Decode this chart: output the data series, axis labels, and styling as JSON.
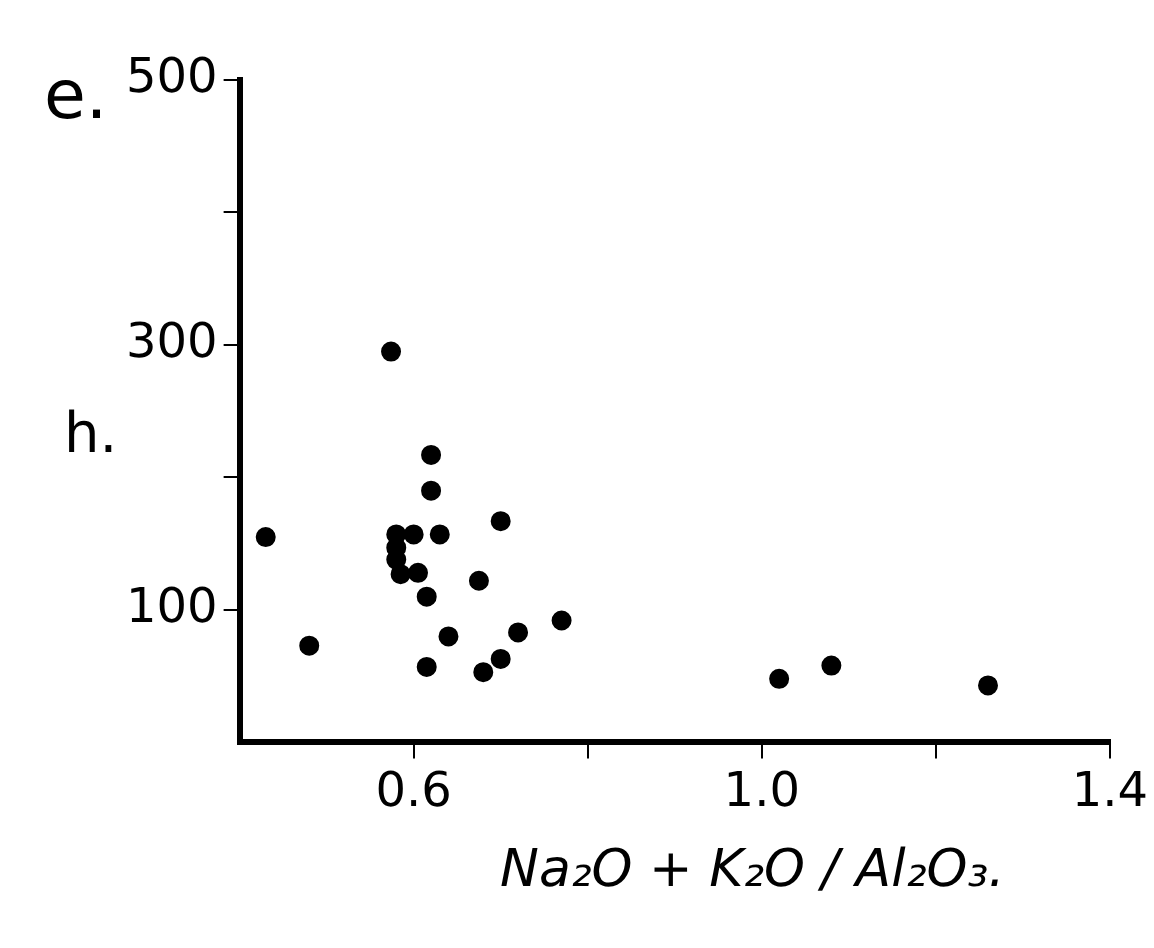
{
  "chart_data": {
    "type": "scatter",
    "title": "e.",
    "xlabel": "Na₂O + K₂O / Al₂O₃.",
    "ylabel": "h.",
    "x": [
      0.574,
      0.43,
      0.48,
      0.62,
      0.62,
      0.7,
      0.6,
      0.63,
      0.58,
      0.58,
      0.58,
      0.585,
      0.605,
      0.675,
      0.615,
      0.64,
      0.72,
      0.77,
      0.615,
      0.7,
      0.68,
      1.02,
      1.08,
      1.26
    ],
    "values": [
      295,
      155,
      73,
      217,
      190,
      167,
      157,
      157,
      157,
      147,
      138,
      127,
      128,
      122,
      110,
      80,
      83,
      92,
      57,
      63,
      53,
      48,
      58,
      43
    ],
    "color": "#000000",
    "marker": "circle",
    "xlim": [
      0.4,
      1.4
    ],
    "xticks": [
      {
        "value": 0.6,
        "label": "0.6"
      },
      {
        "value": 0.8,
        "label": null
      },
      {
        "value": 1.0,
        "label": "1.0"
      },
      {
        "value": 1.2,
        "label": null
      },
      {
        "value": 1.4,
        "label": "1.4"
      }
    ],
    "ylim": [
      0,
      500
    ],
    "yticks": [
      100,
      {
        "value": 200,
        "label": null
      },
      300,
      {
        "value": 400,
        "label": null
      },
      500
    ],
    "grid": false,
    "legend": false
  }
}
